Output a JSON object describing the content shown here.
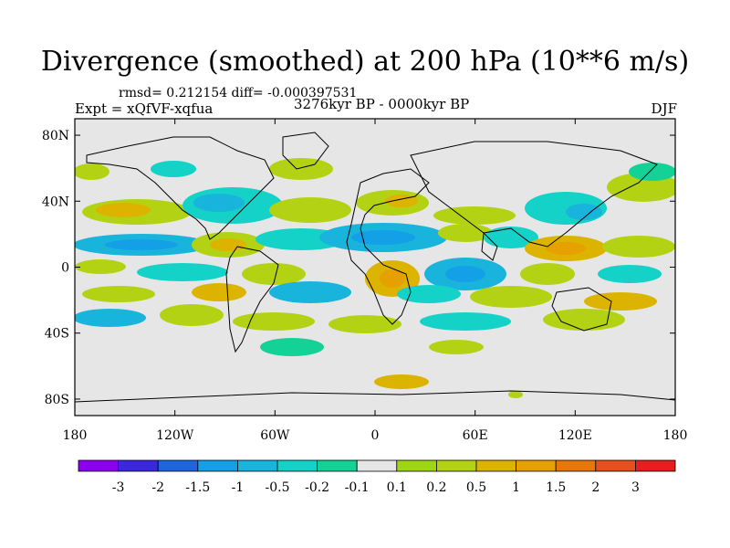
{
  "title": "Divergence (smoothed) at 200 hPa (10**6 m/s)",
  "stats": "rmsd= 0.212154  diff= -0.000397531",
  "experiment": "Expt = xQfVF-xqfua",
  "period": "3276kyr BP - 0000kyr BP",
  "season": "DJF",
  "map": {
    "background_color": "#e6e6e6",
    "lon_ticks": [
      {
        "value": -180,
        "label": "180"
      },
      {
        "value": -120,
        "label": "120W"
      },
      {
        "value": -60,
        "label": "60W"
      },
      {
        "value": 0,
        "label": "0"
      },
      {
        "value": 60,
        "label": "60E"
      },
      {
        "value": 120,
        "label": "120E"
      },
      {
        "value": 180,
        "label": "180"
      }
    ],
    "lat_ticks": [
      {
        "value": 80,
        "label": "80N"
      },
      {
        "value": 40,
        "label": "40N"
      },
      {
        "value": 0,
        "label": "0"
      },
      {
        "value": -40,
        "label": "40S"
      },
      {
        "value": -80,
        "label": "80S"
      }
    ]
  },
  "colorbar": {
    "colors": [
      "#8c00f0",
      "#3c28dc",
      "#1e64dc",
      "#14a0e6",
      "#19b4dc",
      "#14d2c8",
      "#14d296",
      "#e6e6e6",
      "#9ed614",
      "#b4d214",
      "#dcb400",
      "#e6a000",
      "#e6780a",
      "#e6501e",
      "#e61e1e"
    ],
    "labels": [
      "-3",
      "-2",
      "-1.5",
      "-1",
      "-0.5",
      "-0.2",
      "-0.1",
      "0.1",
      "0.2",
      "0.5",
      "1",
      "1.5",
      "2",
      "3"
    ]
  }
}
